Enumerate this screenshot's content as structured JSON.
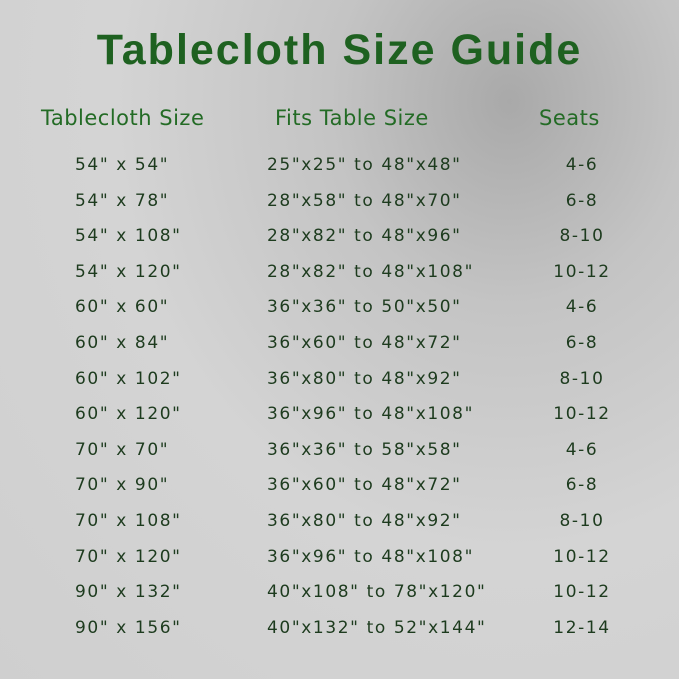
{
  "title": "Tablecloth Size Guide",
  "headers": {
    "size": "Tablecloth Size",
    "fits": "Fits Table Size",
    "seats": "Seats"
  },
  "colors": {
    "title": "#1e6120",
    "header": "#236b25",
    "text": "#1d3b1e"
  },
  "rows": [
    {
      "size": "54\" x 54\"",
      "fits": "25\"x25\" to 48\"x48\"",
      "seats": "4-6"
    },
    {
      "size": "54\" x 78\"",
      "fits": "28\"x58\" to 48\"x70\"",
      "seats": "6-8"
    },
    {
      "size": "54\" x 108\"",
      "fits": "28\"x82\" to 48\"x96\"",
      "seats": "8-10"
    },
    {
      "size": "54\" x 120\"",
      "fits": "28\"x82\" to 48\"x108\"",
      "seats": "10-12"
    },
    {
      "size": "60\" x 60\"",
      "fits": "36\"x36\" to 50\"x50\"",
      "seats": "4-6"
    },
    {
      "size": "60\" x 84\"",
      "fits": "36\"x60\" to 48\"x72\"",
      "seats": "6-8"
    },
    {
      "size": "60\" x 102\"",
      "fits": "36\"x80\" to 48\"x92\"",
      "seats": "8-10"
    },
    {
      "size": "60\" x 120\"",
      "fits": "36\"x96\" to 48\"x108\"",
      "seats": "10-12"
    },
    {
      "size": "70\" x 70\"",
      "fits": "36\"x36\" to 58\"x58\"",
      "seats": "4-6"
    },
    {
      "size": "70\" x 90\"",
      "fits": "36\"x60\" to 48\"x72\"",
      "seats": "6-8"
    },
    {
      "size": "70\" x 108\"",
      "fits": "36\"x80\" to 48\"x92\"",
      "seats": "8-10"
    },
    {
      "size": "70\" x 120\"",
      "fits": "36\"x96\" to 48\"x108\"",
      "seats": "10-12"
    },
    {
      "size": "90\" x 132\"",
      "fits": "40\"x108\" to 78\"x120\"",
      "seats": "10-12"
    },
    {
      "size": "90\" x 156\"",
      "fits": "40\"x132\" to 52\"x144\"",
      "seats": "12-14"
    }
  ]
}
